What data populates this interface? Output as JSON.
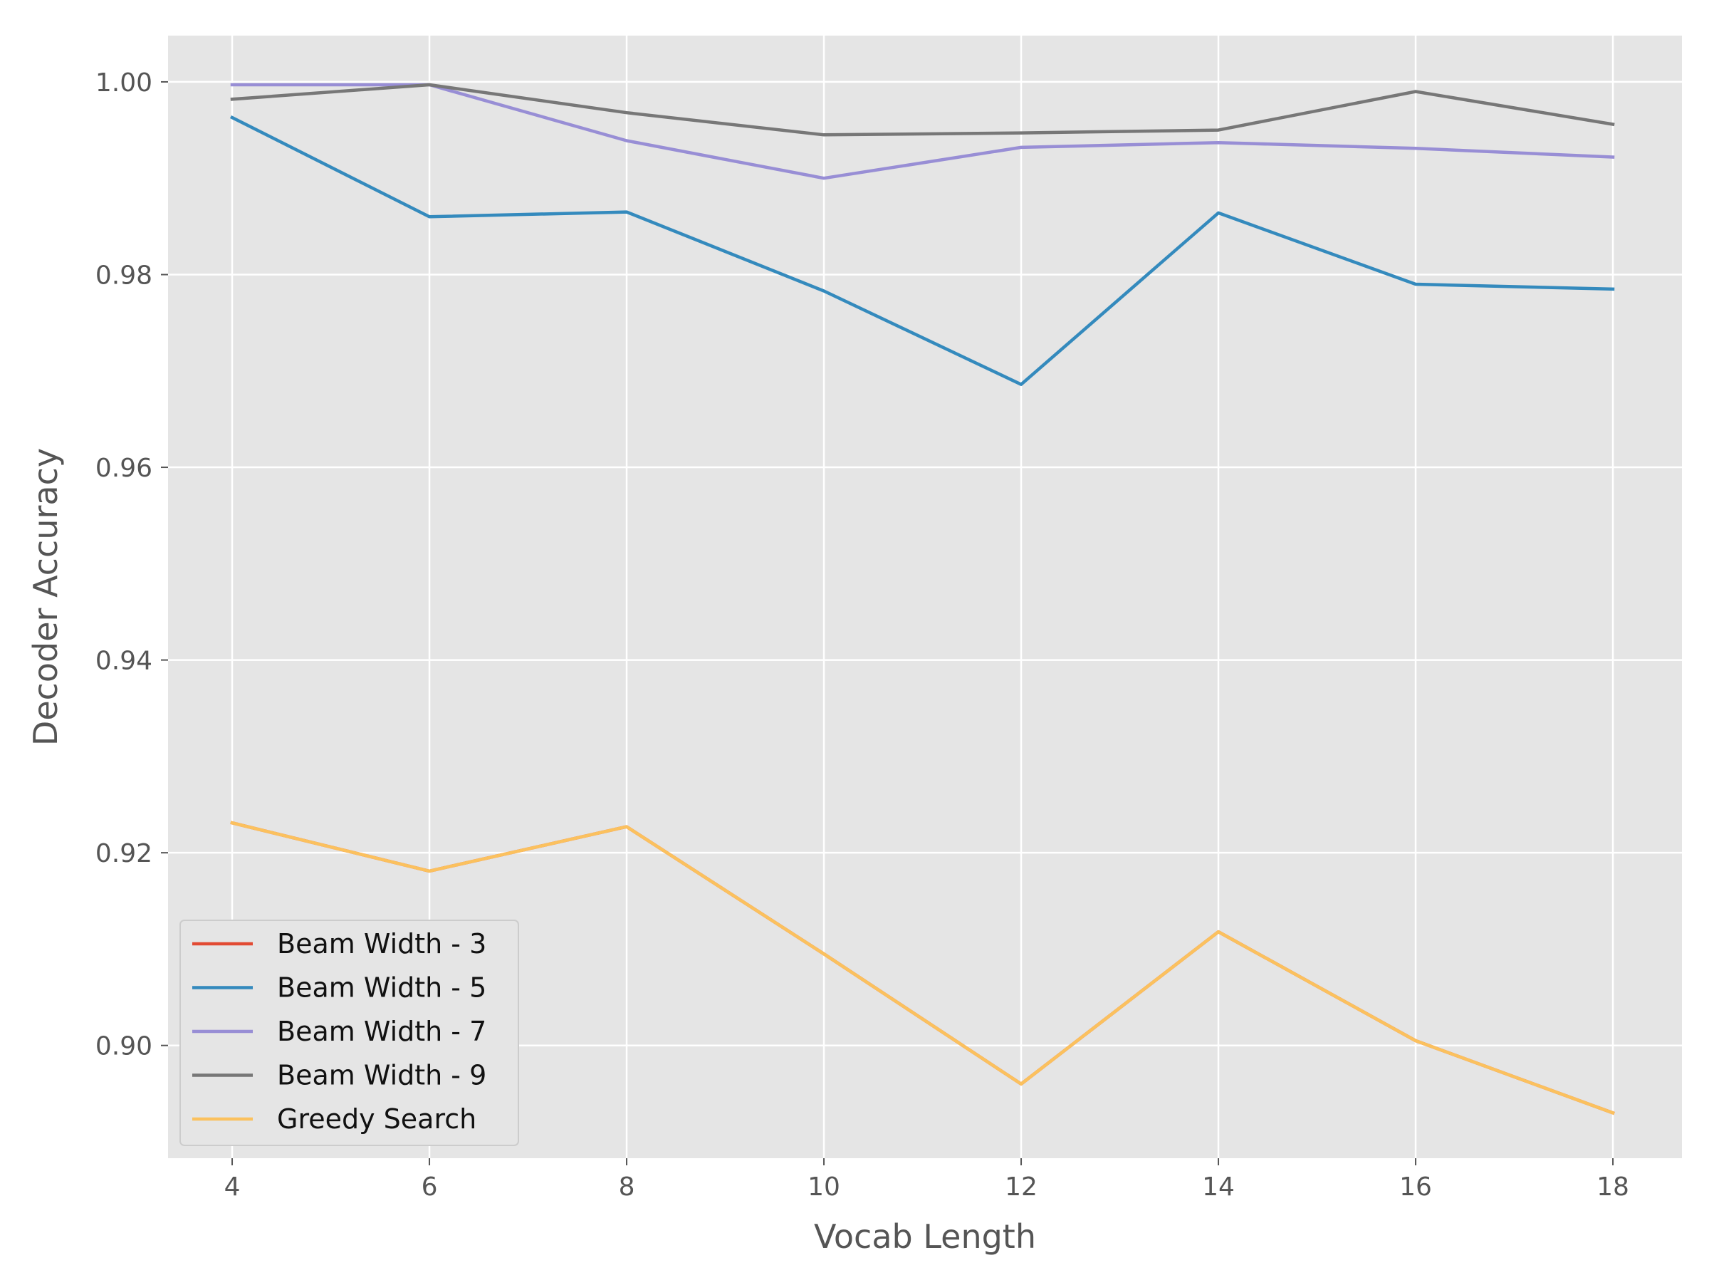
{
  "chart_data": {
    "type": "line",
    "title": "",
    "xlabel": "Vocab Length",
    "ylabel": "Decoder Accuracy",
    "xlim": [
      3.35,
      18.7
    ],
    "ylim": [
      0.8883,
      1.0048
    ],
    "x_ticks": [
      4,
      6,
      8,
      10,
      12,
      14,
      16,
      18
    ],
    "y_ticks": [
      0.9,
      0.92,
      0.94,
      0.96,
      0.98,
      1.0
    ],
    "x_tick_labels": [
      "4",
      "6",
      "8",
      "10",
      "12",
      "14",
      "16",
      "18"
    ],
    "y_tick_labels": [
      "0.90",
      "0.92",
      "0.94",
      "0.96",
      "0.98",
      "1.00"
    ],
    "grid": true,
    "legend_position": "lower-left",
    "x": [
      4,
      6,
      8,
      10,
      12,
      14,
      16,
      18
    ],
    "series": [
      {
        "name": "Beam Width - 3",
        "color": "#e24a33",
        "values": [
          0.9231,
          0.9181,
          0.9227,
          0.9095,
          0.896,
          0.9118,
          0.9005,
          0.893
        ]
      },
      {
        "name": "Beam Width - 5",
        "color": "#348abd",
        "values": [
          0.9963,
          0.986,
          0.9865,
          0.9783,
          0.9686,
          0.9864,
          0.979,
          0.9785
        ]
      },
      {
        "name": "Beam Width - 7",
        "color": "#988ed5",
        "values": [
          0.9997,
          0.9997,
          0.9939,
          0.99,
          0.9932,
          0.9937,
          0.9931,
          0.9922
        ]
      },
      {
        "name": "Beam Width - 9",
        "color": "#777777",
        "values": [
          0.9982,
          0.9997,
          0.9968,
          0.9945,
          0.9947,
          0.995,
          0.999,
          0.9956
        ]
      },
      {
        "name": "Greedy Search",
        "color": "#fbc15e",
        "values": [
          0.9231,
          0.9181,
          0.9227,
          0.9095,
          0.896,
          0.9118,
          0.9005,
          0.893
        ]
      }
    ]
  }
}
